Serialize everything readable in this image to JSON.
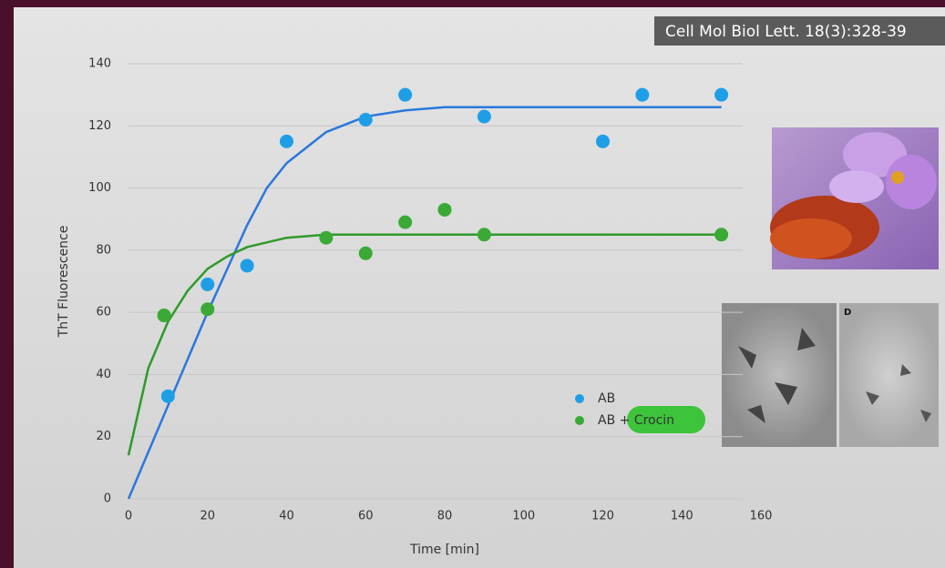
{
  "citation": "Cell Mol Biol Lett. 18(3):328-39",
  "panel_label": "D",
  "chart_data": {
    "type": "scatter",
    "xlabel": "Time [min]",
    "ylabel": "ThT Fluorescence",
    "xlim": [
      0,
      160
    ],
    "ylim": [
      0,
      140
    ],
    "xticks": [
      0,
      20,
      40,
      60,
      80,
      100,
      120,
      140,
      160
    ],
    "yticks": [
      0,
      20,
      40,
      60,
      80,
      100,
      120,
      140
    ],
    "grid": true,
    "series": [
      {
        "name": "AB",
        "color": "#1f9ee8",
        "x": [
          10,
          20,
          30,
          40,
          60,
          70,
          90,
          120,
          130,
          150
        ],
        "values": [
          33,
          69,
          75,
          115,
          122,
          130,
          123,
          115,
          130,
          130
        ],
        "fit": {
          "color": "#2a78dc",
          "x": [
            0,
            5,
            10,
            15,
            20,
            25,
            30,
            35,
            40,
            50,
            60,
            70,
            80,
            90,
            100,
            120,
            150
          ],
          "values": [
            0,
            15,
            30,
            45,
            60,
            74,
            88,
            100,
            108,
            118,
            123,
            125,
            126,
            126,
            126,
            126,
            126
          ]
        }
      },
      {
        "name": "AB + Crocin",
        "color": "#3aa935",
        "x": [
          9,
          20,
          50,
          60,
          70,
          80,
          90,
          150
        ],
        "values": [
          59,
          61,
          84,
          79,
          89,
          93,
          85,
          85
        ],
        "fit": {
          "color": "#2f9a2a",
          "x": [
            0,
            5,
            10,
            15,
            20,
            25,
            30,
            40,
            50,
            60,
            80,
            100,
            150
          ],
          "values": [
            14,
            42,
            57,
            67,
            74,
            78,
            81,
            84,
            85,
            85,
            85,
            85,
            85
          ]
        }
      }
    ]
  }
}
